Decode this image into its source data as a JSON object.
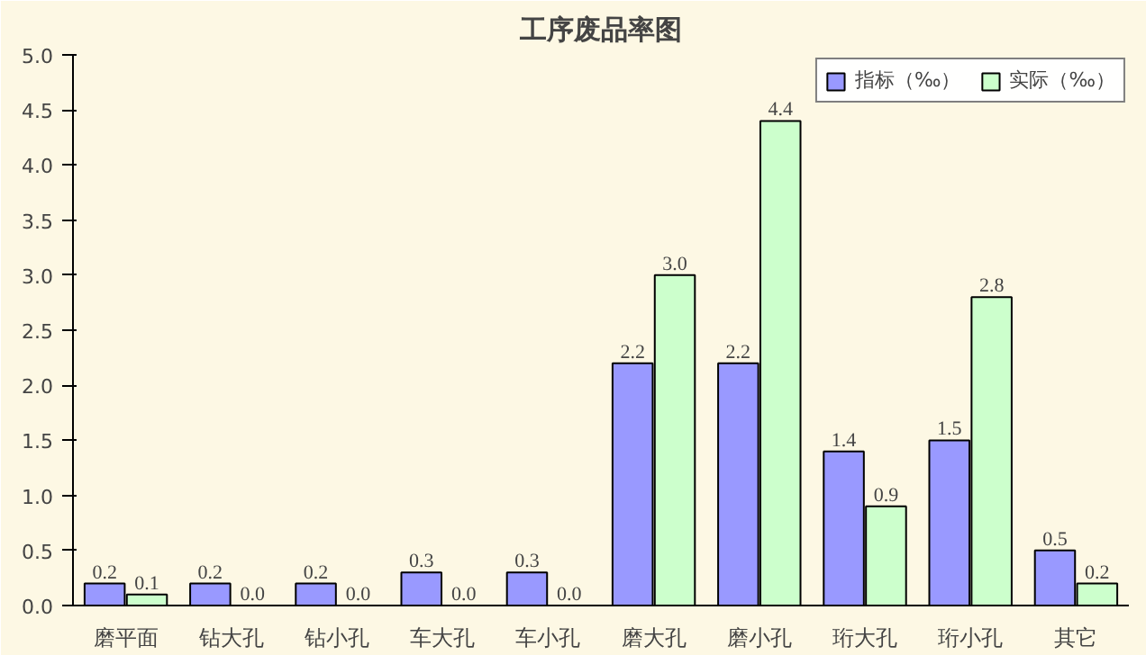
{
  "chart_data": {
    "type": "bar",
    "title": "工序废品率图",
    "categories": [
      "磨平面",
      "钻大孔",
      "钻小孔",
      "车大孔",
      "车小孔",
      "磨大孔",
      "磨小孔",
      "珩大孔",
      "珩小孔",
      "其它"
    ],
    "series": [
      {
        "name": "指标（‰）",
        "color": "#9999ff",
        "values": [
          0.2,
          0.2,
          0.2,
          0.3,
          0.3,
          2.2,
          2.2,
          1.4,
          1.5,
          0.5
        ],
        "value_labels": [
          "0.2",
          "0.2",
          "0.2",
          "0.3",
          "0.3",
          "2.2",
          "2.2",
          "1.4",
          "1.5",
          "0.5"
        ]
      },
      {
        "name": "实际（‰）",
        "color": "#ccffcc",
        "values": [
          0.1,
          0,
          0,
          0,
          0,
          3.0,
          4.4,
          0.9,
          2.8,
          0.2
        ],
        "value_labels": [
          "0.1",
          "0.0",
          "0.0",
          "0.0",
          "0.0",
          "3.0",
          "4.4",
          "0.9",
          "2.8",
          "0.2"
        ]
      }
    ],
    "ylim": [
      0,
      5
    ],
    "yticks": [
      {
        "value": 0,
        "label": "0.0"
      },
      {
        "value": 0.5,
        "label": "0.5"
      },
      {
        "value": 1,
        "label": "1.0"
      },
      {
        "value": 1.5,
        "label": "1.5"
      },
      {
        "value": 2,
        "label": "2.0"
      },
      {
        "value": 2.5,
        "label": "2.5"
      },
      {
        "value": 3,
        "label": "3.0"
      },
      {
        "value": 3.5,
        "label": "3.5"
      },
      {
        "value": 4,
        "label": "4.0"
      },
      {
        "value": 4.5,
        "label": "4.5"
      },
      {
        "value": 5,
        "label": "5.0"
      }
    ],
    "grid": false,
    "legend": "top right"
  }
}
